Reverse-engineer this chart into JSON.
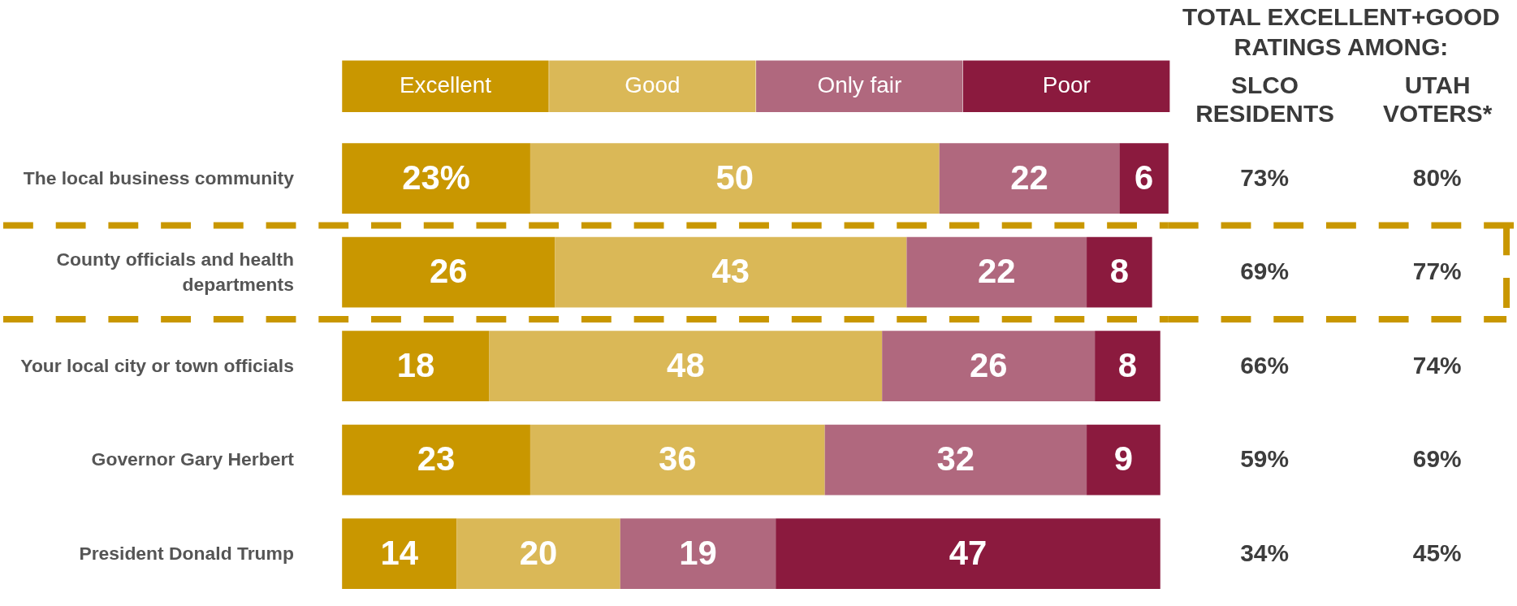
{
  "chart_data": [
    {
      "type": "bar",
      "orientation": "horizontal",
      "stacked": true,
      "categories": [
        "The local business community",
        "County officials and health\ndepartments",
        "Your local city or town officials",
        "Governor Gary Herbert",
        "President Donald Trump"
      ],
      "series": [
        {
          "name": "Excellent",
          "color": "#c99700",
          "values": [
            23,
            26,
            18,
            23,
            14
          ],
          "value_labels": [
            "23%",
            "26",
            "18",
            "23",
            "14"
          ]
        },
        {
          "name": "Good",
          "color": "#dab857",
          "values": [
            50,
            43,
            48,
            36,
            20
          ],
          "value_labels": [
            "50",
            "43",
            "48",
            "36",
            "20"
          ]
        },
        {
          "name": "Only fair",
          "color": "#b0687e",
          "values": [
            22,
            22,
            26,
            32,
            19
          ],
          "value_labels": [
            "22",
            "22",
            "26",
            "32",
            "19"
          ]
        },
        {
          "name": "Poor",
          "color": "#8b1a3e",
          "values": [
            6,
            8,
            8,
            9,
            47
          ],
          "value_labels": [
            "6",
            "8",
            "8",
            "9",
            "47"
          ]
        }
      ],
      "xlim": [
        0,
        101
      ],
      "legend": "top",
      "tick_labels": "y"
    },
    {
      "type": "other",
      "title": "TOTAL EXCELLENT+GOOD\nRATINGS AMONG:",
      "categories": [
        "SLCO\nRESIDENTS",
        "UTAH\nVOTERS*"
      ],
      "annotations": [
        "73%",
        "80%",
        "69%",
        "77%",
        "66%",
        "74%",
        "59%",
        "69%",
        "34%",
        "45%"
      ]
    }
  ]
}
